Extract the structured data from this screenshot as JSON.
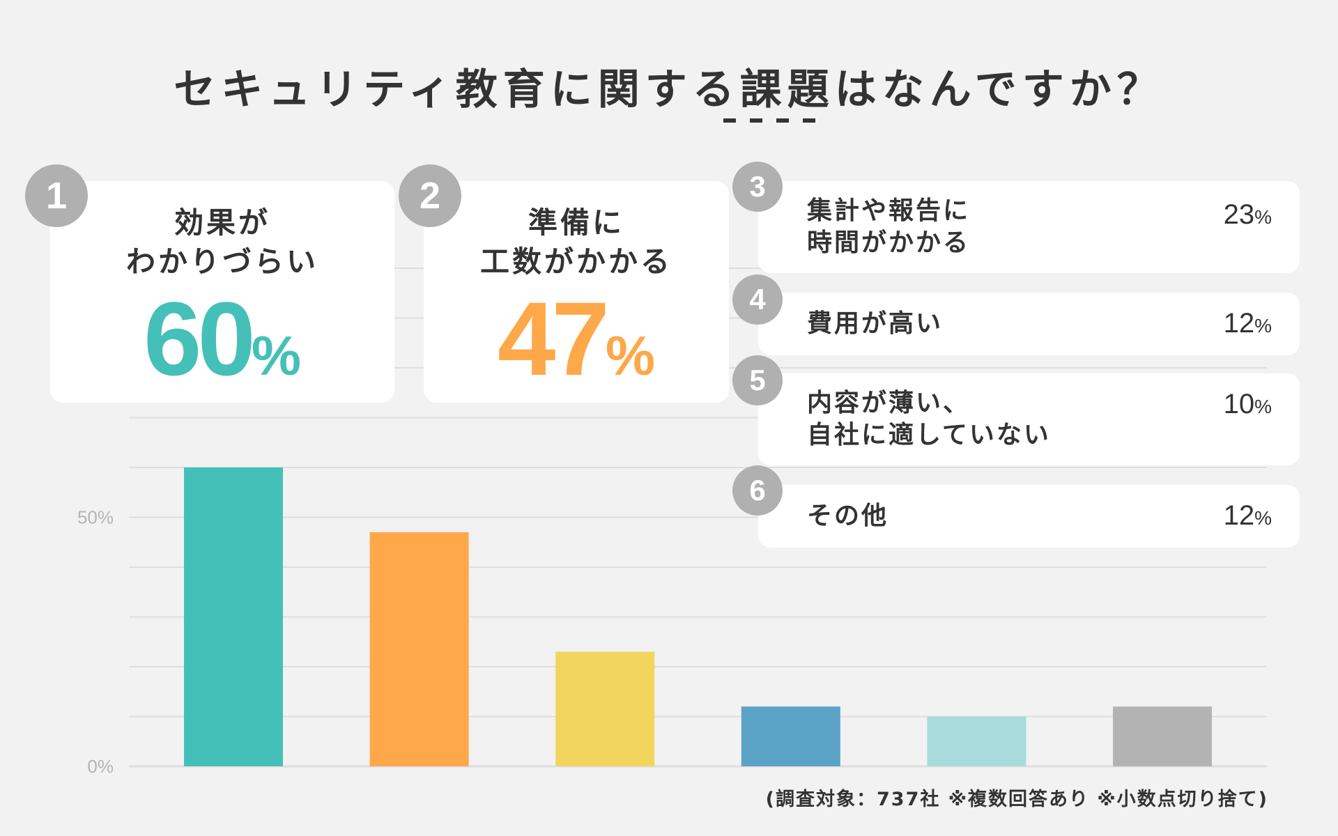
{
  "title": {
    "before": "セキュリティ教育に関する",
    "emphasis": "課題",
    "after": "はなんですか？"
  },
  "colors": {
    "background": "#f2f2f2",
    "text": "#333333",
    "grid": "#dedede",
    "axis_text": "#b5b5b5",
    "badge": "#b0b0b0",
    "card": "#ffffff"
  },
  "chart_data": {
    "type": "bar",
    "categories": [
      "効果がわかりづらい",
      "準備に工数がかかる",
      "集計や報告に時間がかかる",
      "費用が高い",
      "内容が薄い、自社に適していない",
      "その他"
    ],
    "values": [
      60,
      47,
      23,
      12,
      10,
      12
    ],
    "bar_colors": [
      "#45c0b8",
      "#fea84a",
      "#f2d55c",
      "#5ba3c7",
      "#a8dcdc",
      "#b3b3b3"
    ],
    "ylim": [
      0,
      100
    ],
    "yticks": [
      {
        "value": 0,
        "label": "0%"
      },
      {
        "value": 50,
        "label": "50%"
      }
    ],
    "gridlines": [
      0,
      10,
      20,
      30,
      40,
      50,
      60,
      70,
      80,
      90,
      100
    ],
    "grid": true,
    "legend": "none",
    "title": "セキュリティ教育に関する課題はなんですか？"
  },
  "top_cards": [
    {
      "rank": "1",
      "label": "効果が\nわかりづらい",
      "value": "60",
      "unit": "%",
      "color": "#45c0b8"
    },
    {
      "rank": "2",
      "label": "準備に\n工数がかかる",
      "value": "47",
      "unit": "%",
      "color": "#fea84a"
    }
  ],
  "list_cards": [
    {
      "rank": "3",
      "label": "集計や報告に\n時間がかかる",
      "value": "23",
      "unit": "%"
    },
    {
      "rank": "4",
      "label": "費用が高い",
      "value": "12",
      "unit": "%"
    },
    {
      "rank": "5",
      "label": "内容が薄い、\n自社に適していない",
      "value": "10",
      "unit": "%"
    },
    {
      "rank": "6",
      "label": "その他",
      "value": "12",
      "unit": "%"
    }
  ],
  "footnote": "(調査対象：737社 ※複数回答あり ※小数点切り捨て)"
}
